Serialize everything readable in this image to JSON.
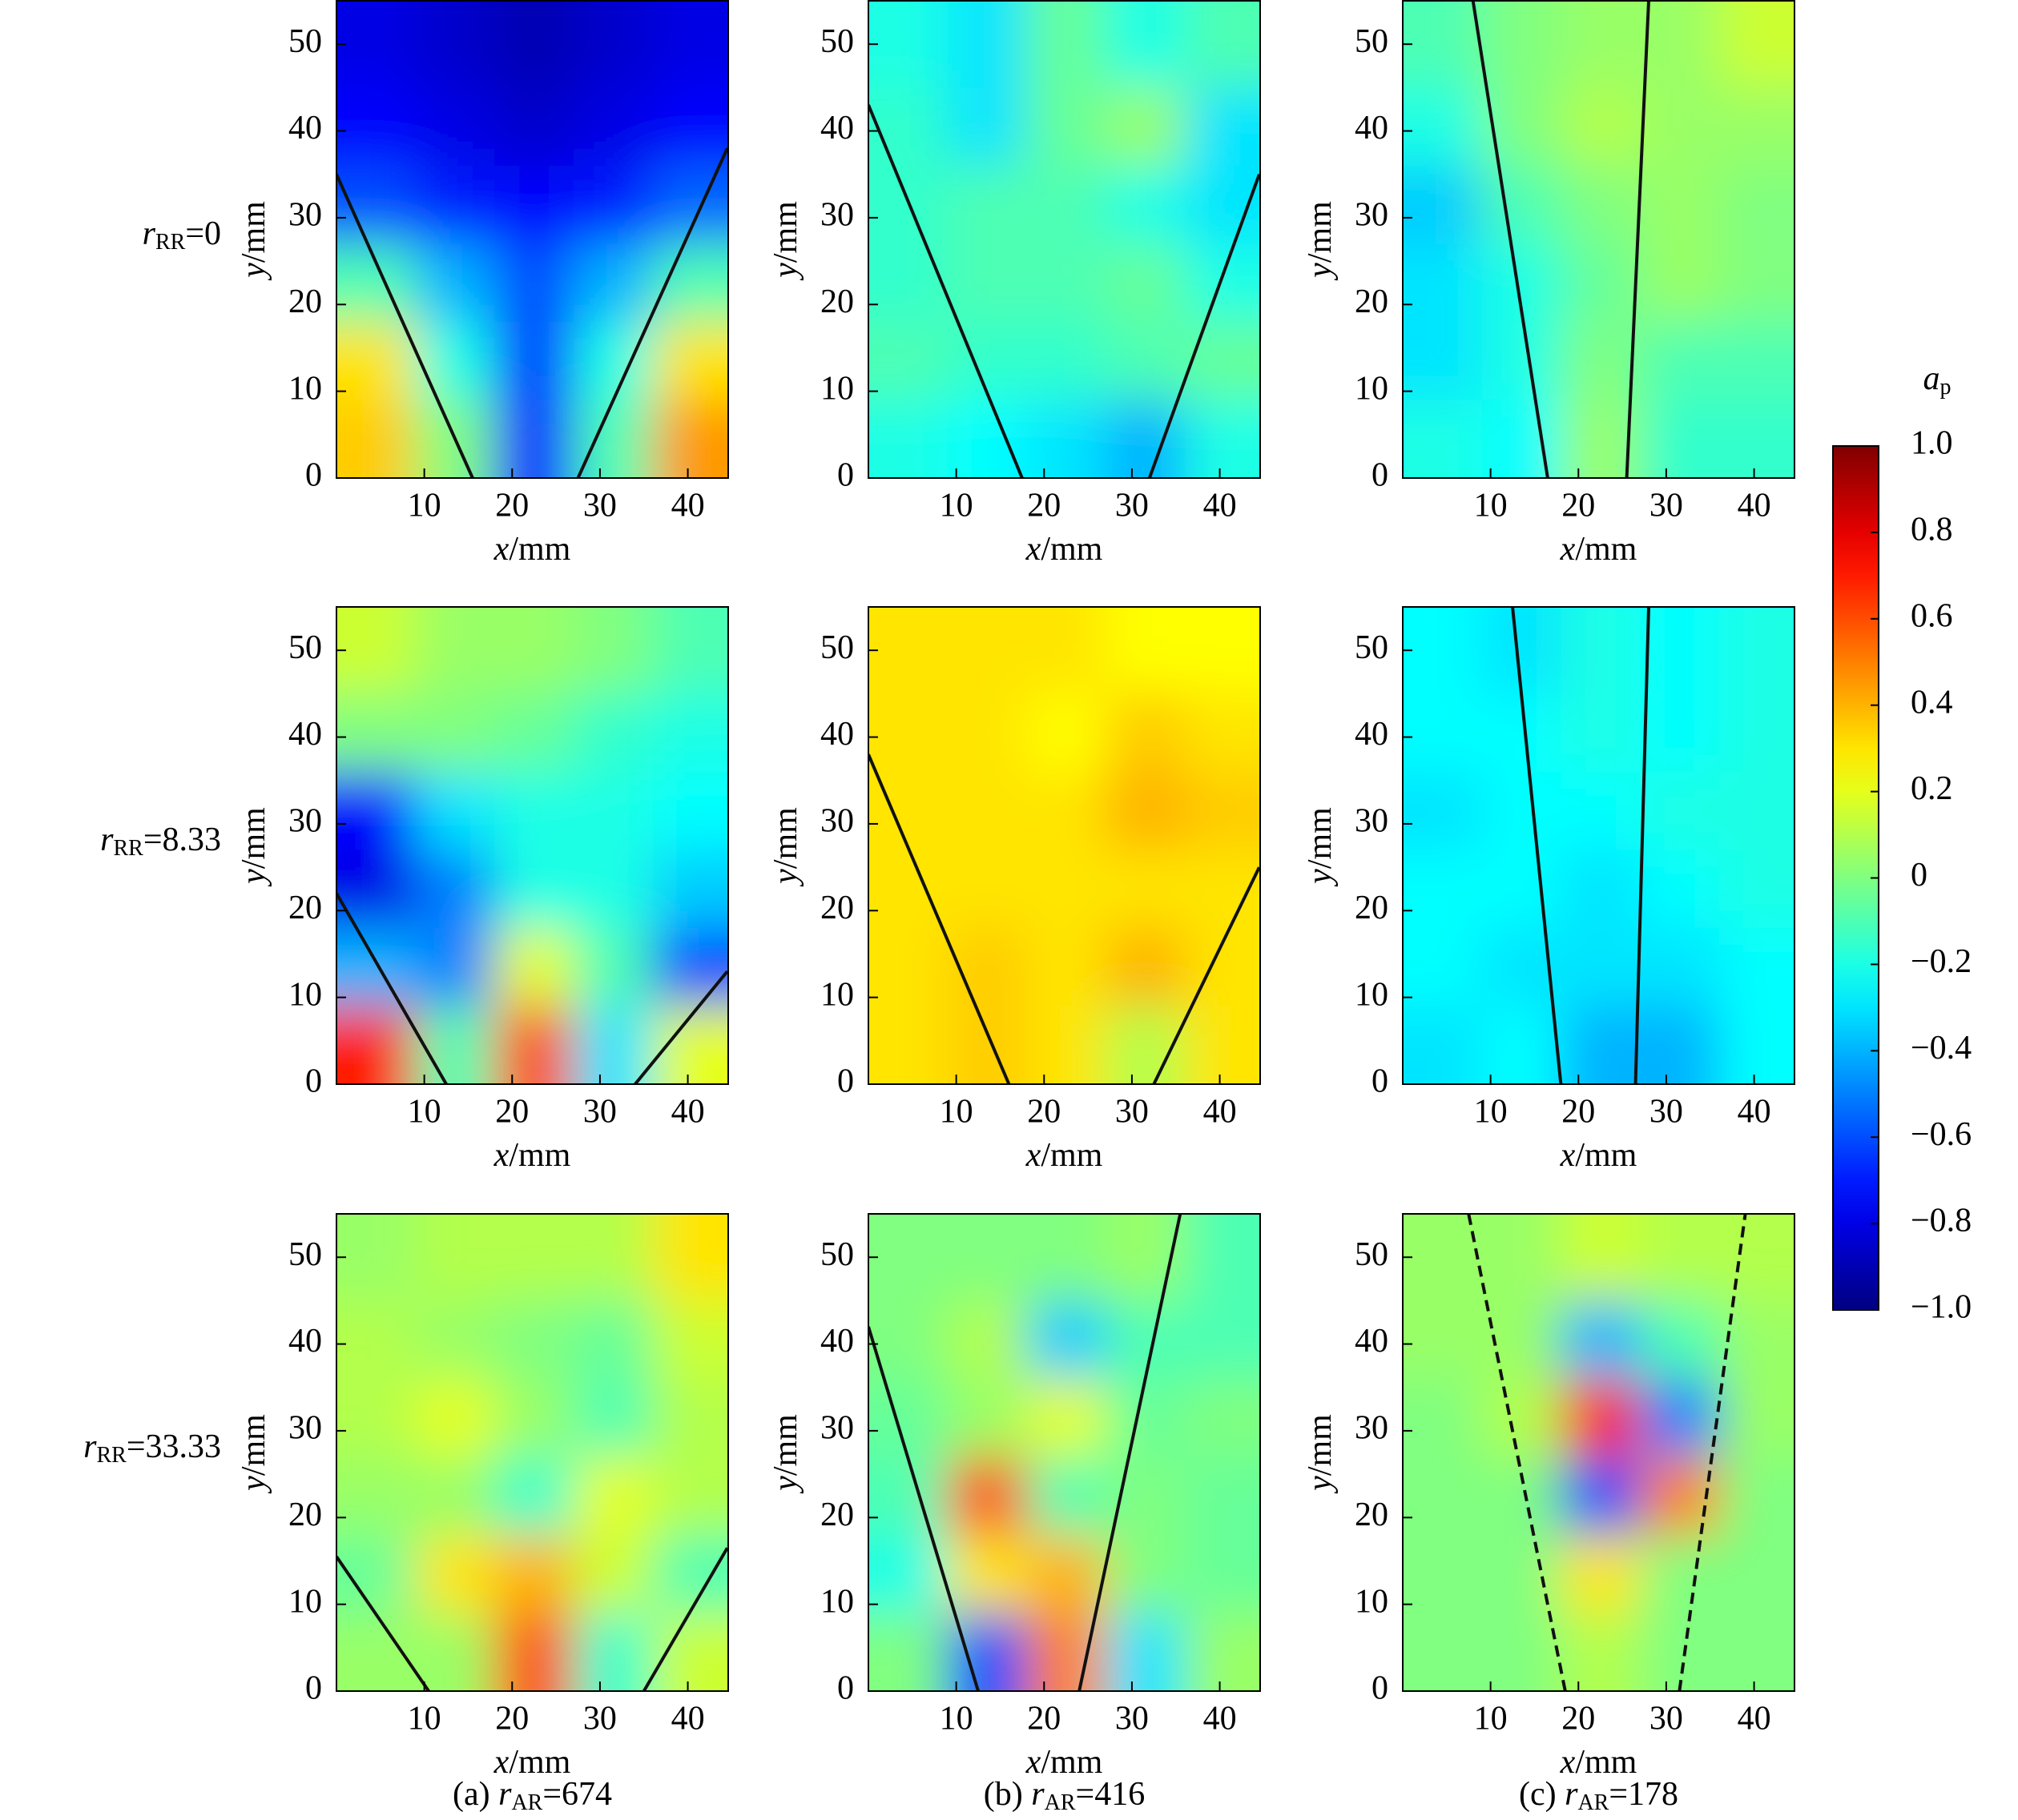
{
  "chart_data": [
    {
      "type": "heatmap",
      "x": [
        4.5,
        13.5,
        22.5,
        31.5,
        40.5
      ],
      "y": [
        4.5,
        13.5,
        22.5,
        31.5,
        40.5,
        49.5
      ],
      "values": [
        [
          0.35,
          0.0,
          -0.7,
          -0.1,
          0.45
        ],
        [
          0.3,
          -0.2,
          -0.65,
          -0.2,
          0.3
        ],
        [
          -0.1,
          -0.4,
          -0.6,
          -0.4,
          -0.1
        ],
        [
          -0.6,
          -0.7,
          -0.75,
          -0.7,
          -0.55
        ],
        [
          -0.75,
          -0.8,
          -0.85,
          -0.8,
          -0.75
        ],
        [
          -0.8,
          -0.85,
          -0.9,
          -0.85,
          -0.8
        ]
      ],
      "xlim": [
        0,
        44.6
      ],
      "ylim": [
        0,
        55
      ],
      "xticks": [
        10,
        20,
        30,
        40
      ],
      "yticks": [
        0,
        10,
        20,
        30,
        40,
        50
      ],
      "xlabel": {
        "symbol": "x",
        "unit": "/mm"
      },
      "ylabel": {
        "symbol": "y",
        "unit": "/mm"
      },
      "lines": [
        {
          "x": [
            0,
            15.5
          ],
          "y": [
            35,
            0
          ]
        },
        {
          "x": [
            27.5,
            44.5
          ],
          "y": [
            0,
            38
          ]
        }
      ],
      "line_style": "solid"
    },
    {
      "type": "heatmap",
      "x": [
        4.5,
        13.5,
        22.5,
        31.5,
        40.5
      ],
      "y": [
        4.5,
        13.5,
        22.5,
        31.5,
        40.5,
        49.5
      ],
      "values": [
        [
          -0.2,
          -0.25,
          -0.3,
          -0.4,
          -0.2
        ],
        [
          -0.1,
          -0.15,
          -0.15,
          -0.1,
          -0.05
        ],
        [
          -0.15,
          -0.1,
          -0.1,
          -0.05,
          -0.2
        ],
        [
          -0.15,
          -0.1,
          -0.1,
          -0.2,
          -0.3
        ],
        [
          -0.15,
          -0.3,
          -0.05,
          0.05,
          -0.3
        ],
        [
          -0.2,
          -0.3,
          -0.05,
          -0.2,
          -0.1
        ]
      ],
      "xlim": [
        0,
        44.6
      ],
      "ylim": [
        0,
        55
      ],
      "xticks": [
        10,
        20,
        30,
        40
      ],
      "yticks": [
        0,
        10,
        20,
        30,
        40,
        50
      ],
      "xlabel": {
        "symbol": "x",
        "unit": "/mm"
      },
      "ylabel": {
        "symbol": "y",
        "unit": "/mm"
      },
      "lines": [
        {
          "x": [
            0,
            17.5
          ],
          "y": [
            43,
            0
          ]
        },
        {
          "x": [
            32,
            44.5
          ],
          "y": [
            0,
            35
          ]
        }
      ],
      "line_style": "solid"
    },
    {
      "type": "heatmap",
      "x": [
        4.5,
        13.5,
        22.5,
        31.5,
        40.5
      ],
      "y": [
        4.5,
        13.5,
        22.5,
        31.5,
        40.5,
        49.5
      ],
      "values": [
        [
          -0.2,
          -0.25,
          0.05,
          -0.15,
          -0.15
        ],
        [
          -0.3,
          -0.2,
          0,
          -0.1,
          -0.1
        ],
        [
          -0.3,
          -0.2,
          -0.05,
          0.05,
          0
        ],
        [
          -0.35,
          -0.1,
          0,
          0.05,
          0
        ],
        [
          -0.2,
          0,
          0.1,
          0.05,
          0.05
        ],
        [
          -0.1,
          0,
          0.05,
          0.05,
          0.15
        ]
      ],
      "xlim": [
        0,
        44.6
      ],
      "ylim": [
        0,
        55
      ],
      "xticks": [
        10,
        20,
        30,
        40
      ],
      "yticks": [
        0,
        10,
        20,
        30,
        40,
        50
      ],
      "xlabel": {
        "symbol": "x",
        "unit": "/mm"
      },
      "ylabel": {
        "symbol": "y",
        "unit": "/mm"
      },
      "lines": [
        {
          "x": [
            8,
            16.5
          ],
          "y": [
            55,
            0
          ]
        },
        {
          "x": [
            25.5,
            28
          ],
          "y": [
            0,
            55
          ]
        }
      ],
      "line_style": "solid"
    },
    {
      "type": "heatmap",
      "x": [
        4.5,
        13.5,
        22.5,
        31.5,
        40.5
      ],
      "y": [
        4.5,
        13.5,
        22.5,
        31.5,
        40.5,
        49.5
      ],
      "values": [
        [
          0.7,
          -0.1,
          0.6,
          -0.3,
          0.2
        ],
        [
          -0.4,
          -0.5,
          0.2,
          -0.1,
          -0.6
        ],
        [
          -0.8,
          -0.5,
          -0.2,
          -0.2,
          -0.35
        ],
        [
          -0.75,
          -0.3,
          -0.2,
          -0.2,
          -0.25
        ],
        [
          0,
          0,
          -0.05,
          -0.15,
          -0.2
        ],
        [
          0.15,
          0.05,
          0.05,
          0,
          -0.1
        ]
      ],
      "xlim": [
        0,
        44.6
      ],
      "ylim": [
        0,
        55
      ],
      "xticks": [
        10,
        20,
        30,
        40
      ],
      "yticks": [
        0,
        10,
        20,
        30,
        40,
        50
      ],
      "xlabel": {
        "symbol": "x",
        "unit": "/mm"
      },
      "ylabel": {
        "symbol": "y",
        "unit": "/mm"
      },
      "lines": [
        {
          "x": [
            0,
            12.5
          ],
          "y": [
            22,
            0
          ]
        },
        {
          "x": [
            34,
            44.5
          ],
          "y": [
            0,
            13
          ]
        }
      ],
      "line_style": "solid"
    },
    {
      "type": "heatmap",
      "x": [
        4.5,
        13.5,
        22.5,
        31.5,
        40.5
      ],
      "y": [
        4.5,
        13.5,
        22.5,
        31.5,
        40.5,
        49.5
      ],
      "values": [
        [
          0.3,
          0.35,
          0.3,
          0.1,
          0.3
        ],
        [
          0.3,
          0.35,
          0.3,
          0.4,
          0.3
        ],
        [
          0.3,
          0.3,
          0.3,
          0.3,
          0.3
        ],
        [
          0.3,
          0.3,
          0.3,
          0.4,
          0.35
        ],
        [
          0.3,
          0.3,
          0.25,
          0.35,
          0.3
        ],
        [
          0.3,
          0.3,
          0.3,
          0.25,
          0.25
        ]
      ],
      "xlim": [
        0,
        44.6
      ],
      "ylim": [
        0,
        55
      ],
      "xticks": [
        10,
        20,
        30,
        40
      ],
      "yticks": [
        0,
        10,
        20,
        30,
        40,
        50
      ],
      "xlabel": {
        "symbol": "x",
        "unit": "/mm"
      },
      "ylabel": {
        "symbol": "y",
        "unit": "/mm"
      },
      "lines": [
        {
          "x": [
            0,
            16
          ],
          "y": [
            38,
            0
          ]
        },
        {
          "x": [
            32.5,
            44.5
          ],
          "y": [
            0,
            25
          ]
        }
      ],
      "line_style": "solid"
    },
    {
      "type": "heatmap",
      "x": [
        4.5,
        13.5,
        22.5,
        31.5,
        40.5
      ],
      "y": [
        4.5,
        13.5,
        22.5,
        31.5,
        40.5,
        49.5
      ],
      "values": [
        [
          -0.3,
          -0.25,
          -0.4,
          -0.4,
          -0.25
        ],
        [
          -0.25,
          -0.3,
          -0.3,
          -0.3,
          -0.25
        ],
        [
          -0.25,
          -0.25,
          -0.3,
          -0.25,
          -0.2
        ],
        [
          -0.3,
          -0.25,
          -0.25,
          -0.2,
          -0.2
        ],
        [
          -0.25,
          -0.25,
          -0.2,
          -0.25,
          -0.2
        ],
        [
          -0.25,
          -0.3,
          -0.2,
          -0.25,
          -0.2
        ]
      ],
      "xlim": [
        0,
        44.6
      ],
      "ylim": [
        0,
        55
      ],
      "xticks": [
        10,
        20,
        30,
        40
      ],
      "yticks": [
        0,
        10,
        20,
        30,
        40,
        50
      ],
      "xlabel": {
        "symbol": "x",
        "unit": "/mm"
      },
      "ylabel": {
        "symbol": "y",
        "unit": "/mm"
      },
      "lines": [
        {
          "x": [
            12.5,
            18
          ],
          "y": [
            55,
            0
          ]
        },
        {
          "x": [
            26.5,
            28
          ],
          "y": [
            0,
            55
          ]
        }
      ],
      "line_style": "solid"
    },
    {
      "type": "heatmap",
      "x": [
        4.5,
        13.5,
        22.5,
        31.5,
        40.5
      ],
      "y": [
        4.5,
        13.5,
        22.5,
        31.5,
        40.5,
        49.5
      ],
      "values": [
        [
          0.05,
          0.05,
          0.6,
          -0.15,
          0.15
        ],
        [
          -0.05,
          0.3,
          0.4,
          0.15,
          -0.1
        ],
        [
          0.05,
          0.05,
          -0.15,
          0.2,
          0.1
        ],
        [
          0.1,
          0.2,
          0.05,
          -0.1,
          0.1
        ],
        [
          0.1,
          0.05,
          0,
          -0.05,
          0.15
        ],
        [
          0.05,
          0.1,
          0.1,
          0.1,
          0.3
        ]
      ],
      "xlim": [
        0,
        44.6
      ],
      "ylim": [
        0,
        55
      ],
      "xticks": [
        10,
        20,
        30,
        40
      ],
      "yticks": [
        0,
        10,
        20,
        30,
        40,
        50
      ],
      "xlabel": {
        "symbol": "x",
        "unit": "/mm"
      },
      "ylabel": {
        "symbol": "y",
        "unit": "/mm"
      },
      "lines": [
        {
          "x": [
            0,
            10.5
          ],
          "y": [
            15.5,
            0
          ]
        },
        {
          "x": [
            35,
            44.5
          ],
          "y": [
            0,
            16.5
          ]
        }
      ],
      "line_style": "solid"
    },
    {
      "type": "heatmap",
      "x": [
        4.5,
        13.5,
        22.5,
        31.5,
        40.5
      ],
      "y": [
        4.5,
        13.5,
        22.5,
        31.5,
        40.5,
        49.5
      ],
      "values": [
        [
          0,
          -0.6,
          0.5,
          -0.3,
          0.05
        ],
        [
          -0.2,
          0.3,
          0.4,
          0,
          -0.05
        ],
        [
          -0.1,
          0.6,
          -0.1,
          0,
          -0.05
        ],
        [
          -0.05,
          0.05,
          0.2,
          -0.05,
          0
        ],
        [
          0,
          0.1,
          -0.35,
          -0.1,
          -0.1
        ],
        [
          0,
          0,
          0,
          0.05,
          -0.1
        ]
      ],
      "xlim": [
        0,
        44.6
      ],
      "ylim": [
        0,
        55
      ],
      "xticks": [
        10,
        20,
        30,
        40
      ],
      "yticks": [
        0,
        10,
        20,
        30,
        40,
        50
      ],
      "xlabel": {
        "symbol": "x",
        "unit": "/mm"
      },
      "ylabel": {
        "symbol": "y",
        "unit": "/mm"
      },
      "lines": [
        {
          "x": [
            0,
            12.5
          ],
          "y": [
            42,
            0
          ]
        },
        {
          "x": [
            24,
            35.5
          ],
          "y": [
            0,
            55
          ]
        }
      ],
      "line_style": "solid"
    },
    {
      "type": "heatmap",
      "x": [
        4.5,
        13.5,
        22.5,
        31.5,
        40.5
      ],
      "y": [
        4.5,
        13.5,
        22.5,
        31.5,
        40.5,
        49.5
      ],
      "values": [
        [
          0,
          0,
          0.1,
          0,
          0
        ],
        [
          0,
          0,
          0.3,
          0,
          0
        ],
        [
          0,
          0,
          -0.6,
          0.5,
          0
        ],
        [
          0,
          0.1,
          0.7,
          -0.5,
          0.05
        ],
        [
          0.05,
          0.05,
          -0.4,
          -0.1,
          0.05
        ],
        [
          0.05,
          0.05,
          0.15,
          0.1,
          0.1
        ]
      ],
      "xlim": [
        0,
        44.6
      ],
      "ylim": [
        0,
        55
      ],
      "xticks": [
        10,
        20,
        30,
        40
      ],
      "yticks": [
        0,
        10,
        20,
        30,
        40,
        50
      ],
      "xlabel": {
        "symbol": "x",
        "unit": "/mm"
      },
      "ylabel": {
        "symbol": "y",
        "unit": "/mm"
      },
      "lines": [
        {
          "x": [
            7.5,
            18.5
          ],
          "y": [
            55,
            0
          ]
        },
        {
          "x": [
            31.5,
            39
          ],
          "y": [
            0,
            55
          ]
        }
      ],
      "line_style": "dashed"
    }
  ],
  "colorbar": {
    "label": {
      "symbol": "a",
      "subscript": "p"
    },
    "colormap": "jet",
    "clim": [
      -1,
      1
    ],
    "ticks": [
      {
        "value": 1,
        "label": "1.0"
      },
      0.8,
      0.6,
      0.4,
      0.2,
      0,
      {
        "value": -0.2,
        "label": "−0.2"
      },
      {
        "value": -0.4,
        "label": "−0.4"
      },
      {
        "value": -0.6,
        "label": "−0.6"
      },
      {
        "value": -0.8,
        "label": "−0.8"
      },
      {
        "value": -1,
        "label": "−1.0"
      }
    ]
  },
  "row_labels": [
    {
      "symbol": "r",
      "subscript": "RR",
      "text": "=0"
    },
    {
      "symbol": "r",
      "subscript": "RR",
      "text": "=8.33"
    },
    {
      "symbol": "r",
      "subscript": "RR",
      "text": "=33.33"
    }
  ],
  "column_captions": [
    {
      "prefix": "(a) ",
      "symbol": "r",
      "subscript": "AR",
      "text": "=674"
    },
    {
      "prefix": "(b) ",
      "symbol": "r",
      "subscript": "AR",
      "text": "=416"
    },
    {
      "prefix": "(c) ",
      "symbol": "r",
      "subscript": "AR",
      "text": "=178"
    }
  ]
}
